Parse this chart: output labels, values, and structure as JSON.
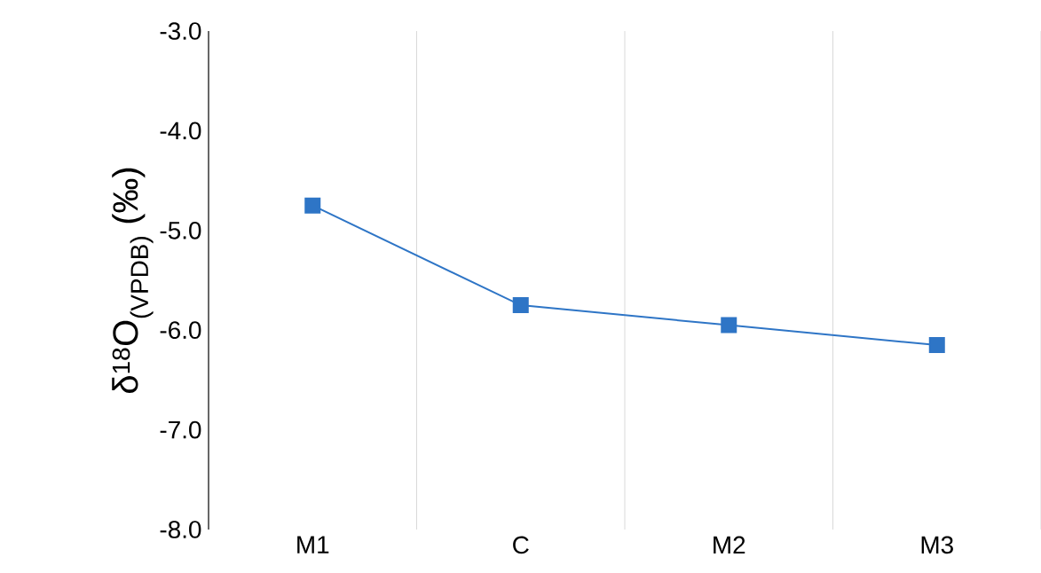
{
  "chart_data": {
    "type": "line",
    "ylabel": "δ$^{18}$O$_{(VPDB)}$ (‰)",
    "categories": [
      "M1",
      "C",
      "M2",
      "M3"
    ],
    "values": [
      -4.75,
      -5.75,
      -5.95,
      -6.15
    ],
    "color": "#2e75c6",
    "marker": "square",
    "line_style": "solid",
    "ylim": [
      -8,
      -3
    ],
    "yticks": [
      {
        "value": -8,
        "label": "-8.0"
      },
      {
        "value": -7,
        "label": "-7.0"
      },
      {
        "value": -6,
        "label": "-6.0"
      },
      {
        "value": -5,
        "label": "-5.0"
      },
      {
        "value": -4,
        "label": "-4.0"
      },
      {
        "value": -3,
        "label": "-3.0"
      }
    ],
    "grid": "x"
  }
}
